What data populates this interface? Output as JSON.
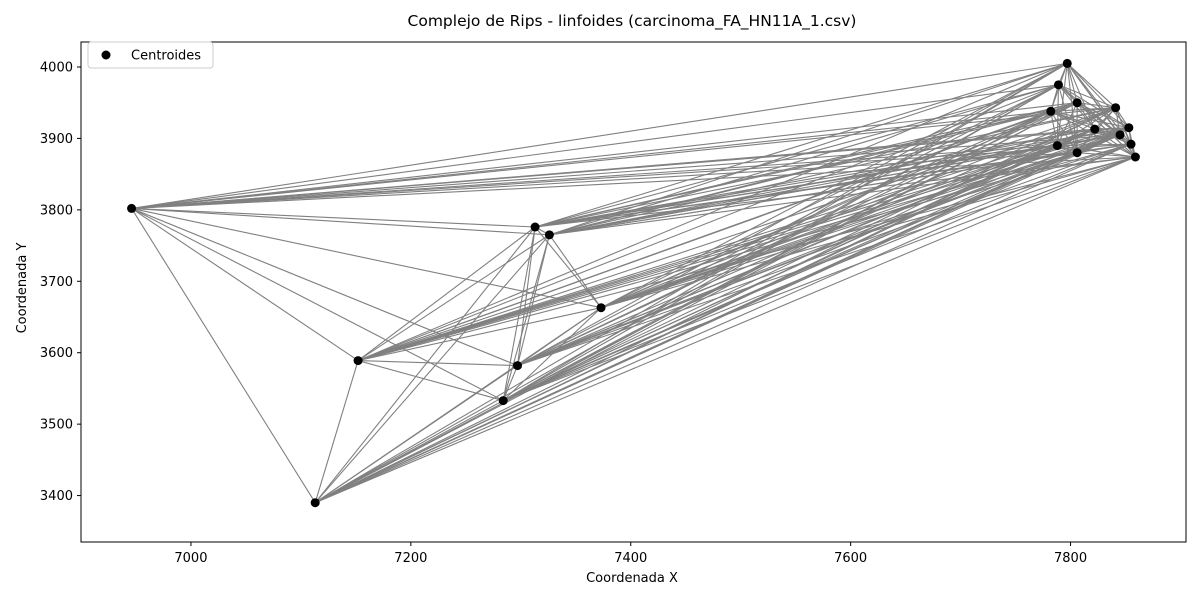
{
  "chart_data": {
    "type": "scatter",
    "title": "Complejo de Rips - linfoides (carcinoma_FA_HN11A_1.csv)",
    "xlabel": "Coordenada X",
    "ylabel": "Coordenada Y",
    "xlim": [
      6900,
      7905
    ],
    "ylim": [
      3335,
      4035
    ],
    "xticks": [
      7000,
      7200,
      7400,
      7600,
      7800
    ],
    "yticks": [
      3400,
      3500,
      3600,
      3700,
      3800,
      3900,
      4000
    ],
    "grid": false,
    "legend": {
      "position": "top-left",
      "entries": [
        "Centroides"
      ]
    },
    "colors": {
      "points": "#000000",
      "edges": "#808080",
      "axes": "#000000"
    },
    "series": [
      {
        "name": "Centroides",
        "points": [
          [
            6946,
            3802
          ],
          [
            7113,
            3390
          ],
          [
            7152,
            3589
          ],
          [
            7284,
            3533
          ],
          [
            7297,
            3582
          ],
          [
            7313,
            3776
          ],
          [
            7326,
            3765
          ],
          [
            7373,
            3663
          ],
          [
            7782,
            3938
          ],
          [
            7789,
            3975
          ],
          [
            7797,
            4005
          ],
          [
            7788,
            3890
          ],
          [
            7806,
            3950
          ],
          [
            7806,
            3880
          ],
          [
            7822,
            3913
          ],
          [
            7841,
            3943
          ],
          [
            7845,
            3905
          ],
          [
            7853,
            3915
          ],
          [
            7855,
            3892
          ],
          [
            7859,
            3874
          ]
        ]
      }
    ],
    "edges": [
      [
        0,
        2
      ],
      [
        0,
        3
      ],
      [
        0,
        4
      ],
      [
        0,
        5
      ],
      [
        0,
        6
      ],
      [
        0,
        7
      ],
      [
        0,
        1
      ],
      [
        0,
        8
      ],
      [
        0,
        9
      ],
      [
        0,
        10
      ],
      [
        0,
        11
      ],
      [
        0,
        12
      ],
      [
        0,
        13
      ],
      [
        0,
        14
      ],
      [
        0,
        15
      ],
      [
        0,
        16
      ],
      [
        0,
        17
      ],
      [
        0,
        18
      ],
      [
        0,
        19
      ],
      [
        1,
        2
      ],
      [
        1,
        3
      ],
      [
        1,
        4
      ],
      [
        1,
        5
      ],
      [
        1,
        6
      ],
      [
        1,
        7
      ],
      [
        1,
        8
      ],
      [
        1,
        9
      ],
      [
        1,
        10
      ],
      [
        1,
        11
      ],
      [
        1,
        12
      ],
      [
        1,
        13
      ],
      [
        1,
        14
      ],
      [
        1,
        15
      ],
      [
        1,
        16
      ],
      [
        1,
        17
      ],
      [
        1,
        18
      ],
      [
        1,
        19
      ],
      [
        2,
        3
      ],
      [
        2,
        4
      ],
      [
        2,
        5
      ],
      [
        2,
        6
      ],
      [
        2,
        7
      ],
      [
        2,
        8
      ],
      [
        2,
        9
      ],
      [
        2,
        10
      ],
      [
        2,
        11
      ],
      [
        2,
        12
      ],
      [
        2,
        13
      ],
      [
        2,
        14
      ],
      [
        2,
        15
      ],
      [
        2,
        16
      ],
      [
        2,
        17
      ],
      [
        2,
        18
      ],
      [
        2,
        19
      ],
      [
        3,
        4
      ],
      [
        3,
        5
      ],
      [
        3,
        6
      ],
      [
        3,
        7
      ],
      [
        3,
        8
      ],
      [
        3,
        9
      ],
      [
        3,
        10
      ],
      [
        3,
        11
      ],
      [
        3,
        12
      ],
      [
        3,
        13
      ],
      [
        3,
        14
      ],
      [
        3,
        15
      ],
      [
        3,
        16
      ],
      [
        3,
        17
      ],
      [
        3,
        18
      ],
      [
        3,
        19
      ],
      [
        4,
        5
      ],
      [
        4,
        6
      ],
      [
        4,
        7
      ],
      [
        4,
        8
      ],
      [
        4,
        9
      ],
      [
        4,
        10
      ],
      [
        4,
        11
      ],
      [
        4,
        12
      ],
      [
        4,
        13
      ],
      [
        4,
        14
      ],
      [
        4,
        15
      ],
      [
        4,
        16
      ],
      [
        4,
        17
      ],
      [
        4,
        18
      ],
      [
        4,
        19
      ],
      [
        5,
        6
      ],
      [
        5,
        7
      ],
      [
        5,
        8
      ],
      [
        5,
        9
      ],
      [
        5,
        10
      ],
      [
        5,
        11
      ],
      [
        5,
        12
      ],
      [
        5,
        13
      ],
      [
        5,
        14
      ],
      [
        5,
        15
      ],
      [
        5,
        16
      ],
      [
        5,
        17
      ],
      [
        5,
        18
      ],
      [
        5,
        19
      ],
      [
        6,
        7
      ],
      [
        6,
        8
      ],
      [
        6,
        9
      ],
      [
        6,
        10
      ],
      [
        6,
        11
      ],
      [
        6,
        12
      ],
      [
        6,
        13
      ],
      [
        6,
        14
      ],
      [
        6,
        15
      ],
      [
        6,
        16
      ],
      [
        6,
        17
      ],
      [
        6,
        18
      ],
      [
        6,
        19
      ],
      [
        7,
        8
      ],
      [
        7,
        9
      ],
      [
        7,
        10
      ],
      [
        7,
        11
      ],
      [
        7,
        12
      ],
      [
        7,
        13
      ],
      [
        7,
        14
      ],
      [
        7,
        15
      ],
      [
        7,
        16
      ],
      [
        7,
        17
      ],
      [
        7,
        18
      ],
      [
        7,
        19
      ],
      [
        8,
        9
      ],
      [
        8,
        10
      ],
      [
        8,
        11
      ],
      [
        8,
        12
      ],
      [
        8,
        13
      ],
      [
        8,
        14
      ],
      [
        8,
        15
      ],
      [
        8,
        16
      ],
      [
        8,
        17
      ],
      [
        8,
        18
      ],
      [
        8,
        19
      ],
      [
        9,
        10
      ],
      [
        9,
        11
      ],
      [
        9,
        12
      ],
      [
        9,
        13
      ],
      [
        9,
        14
      ],
      [
        9,
        15
      ],
      [
        9,
        16
      ],
      [
        9,
        17
      ],
      [
        9,
        18
      ],
      [
        9,
        19
      ],
      [
        10,
        11
      ],
      [
        10,
        12
      ],
      [
        10,
        13
      ],
      [
        10,
        14
      ],
      [
        10,
        15
      ],
      [
        10,
        16
      ],
      [
        10,
        17
      ],
      [
        10,
        18
      ],
      [
        10,
        19
      ],
      [
        11,
        12
      ],
      [
        11,
        13
      ],
      [
        11,
        14
      ],
      [
        11,
        15
      ],
      [
        11,
        16
      ],
      [
        11,
        17
      ],
      [
        11,
        18
      ],
      [
        11,
        19
      ],
      [
        12,
        13
      ],
      [
        12,
        14
      ],
      [
        12,
        15
      ],
      [
        12,
        16
      ],
      [
        12,
        17
      ],
      [
        12,
        18
      ],
      [
        12,
        19
      ],
      [
        13,
        14
      ],
      [
        13,
        15
      ],
      [
        13,
        16
      ],
      [
        13,
        17
      ],
      [
        13,
        18
      ],
      [
        13,
        19
      ],
      [
        14,
        15
      ],
      [
        14,
        16
      ],
      [
        14,
        17
      ],
      [
        14,
        18
      ],
      [
        14,
        19
      ],
      [
        15,
        16
      ],
      [
        15,
        17
      ],
      [
        15,
        18
      ],
      [
        15,
        19
      ],
      [
        16,
        17
      ],
      [
        16,
        18
      ],
      [
        16,
        19
      ],
      [
        17,
        18
      ],
      [
        17,
        19
      ],
      [
        18,
        19
      ]
    ]
  }
}
